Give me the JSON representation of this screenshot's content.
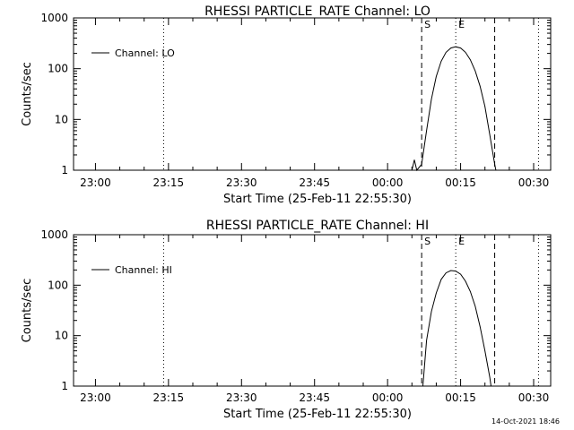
{
  "footer": {
    "timestamp": "14-Oct-2021 18:46"
  },
  "chart_data": [
    {
      "type": "line",
      "title": "RHESSI PARTICLE_RATE Channel: LO",
      "xlabel": "Start Time (25-Feb-11 22:55:30)",
      "ylabel": "Counts/sec",
      "y_scale": "log",
      "ylim": [
        1,
        1000
      ],
      "xlim_minutes_from_start": [
        0,
        98
      ],
      "x_tick_labels": [
        "23:00",
        "23:15",
        "23:30",
        "23:45",
        "00:00",
        "00:15",
        "00:30"
      ],
      "y_tick_labels": [
        "1",
        "10",
        "100",
        "1000"
      ],
      "legend": {
        "position": "top-left",
        "label": "Channel: LO"
      },
      "markers": [
        {
          "label": "",
          "time": "23:14",
          "style": "dotted"
        },
        {
          "label": "S",
          "time": "00:07",
          "style": "dashed"
        },
        {
          "label": "E",
          "time": "00:14",
          "style": "dotted"
        },
        {
          "label": "",
          "time": "00:22",
          "style": "dashed"
        },
        {
          "label": "",
          "time": "00:31",
          "style": "dotted"
        }
      ],
      "series": [
        {
          "name": "Channel: LO",
          "points": [
            [
              "00:05",
              1.0
            ],
            [
              "00:05:30",
              1.6
            ],
            [
              "00:06",
              1.0
            ],
            [
              "00:07",
              1.3
            ],
            [
              "00:08",
              6
            ],
            [
              "00:09",
              25
            ],
            [
              "00:10",
              70
            ],
            [
              "00:11",
              140
            ],
            [
              "00:12",
              210
            ],
            [
              "00:13",
              255
            ],
            [
              "00:14",
              270
            ],
            [
              "00:15",
              255
            ],
            [
              "00:16",
              210
            ],
            [
              "00:17",
              150
            ],
            [
              "00:18",
              90
            ],
            [
              "00:19",
              45
            ],
            [
              "00:20",
              18
            ],
            [
              "00:21",
              5
            ],
            [
              "00:22",
              1.3
            ],
            [
              "00:22:15",
              1.0
            ]
          ]
        }
      ]
    },
    {
      "type": "line",
      "title": "RHESSI PARTICLE_RATE Channel: HI",
      "xlabel": "Start Time (25-Feb-11 22:55:30)",
      "ylabel": "Counts/sec",
      "y_scale": "log",
      "ylim": [
        1,
        1000
      ],
      "xlim_minutes_from_start": [
        0,
        98
      ],
      "x_tick_labels": [
        "23:00",
        "23:15",
        "23:30",
        "23:45",
        "00:00",
        "00:15",
        "00:30"
      ],
      "y_tick_labels": [
        "1",
        "10",
        "100",
        "1000"
      ],
      "legend": {
        "position": "top-left",
        "label": "Channel: HI"
      },
      "markers": [
        {
          "label": "",
          "time": "23:14",
          "style": "dotted"
        },
        {
          "label": "S",
          "time": "00:07",
          "style": "dashed"
        },
        {
          "label": "E",
          "time": "00:14",
          "style": "dotted"
        },
        {
          "label": "",
          "time": "00:22",
          "style": "dashed"
        },
        {
          "label": "",
          "time": "00:31",
          "style": "dotted"
        }
      ],
      "series": [
        {
          "name": "Channel: HI",
          "points": [
            [
              "00:07:15",
              1.0
            ],
            [
              "00:08",
              8
            ],
            [
              "00:09",
              30
            ],
            [
              "00:10",
              70
            ],
            [
              "00:11",
              130
            ],
            [
              "00:12",
              175
            ],
            [
              "00:13",
              195
            ],
            [
              "00:14",
              190
            ],
            [
              "00:15",
              165
            ],
            [
              "00:16",
              120
            ],
            [
              "00:17",
              75
            ],
            [
              "00:18",
              38
            ],
            [
              "00:19",
              15
            ],
            [
              "00:20",
              5
            ],
            [
              "00:21",
              1.5
            ],
            [
              "00:21:15",
              1.0
            ]
          ]
        }
      ]
    }
  ]
}
